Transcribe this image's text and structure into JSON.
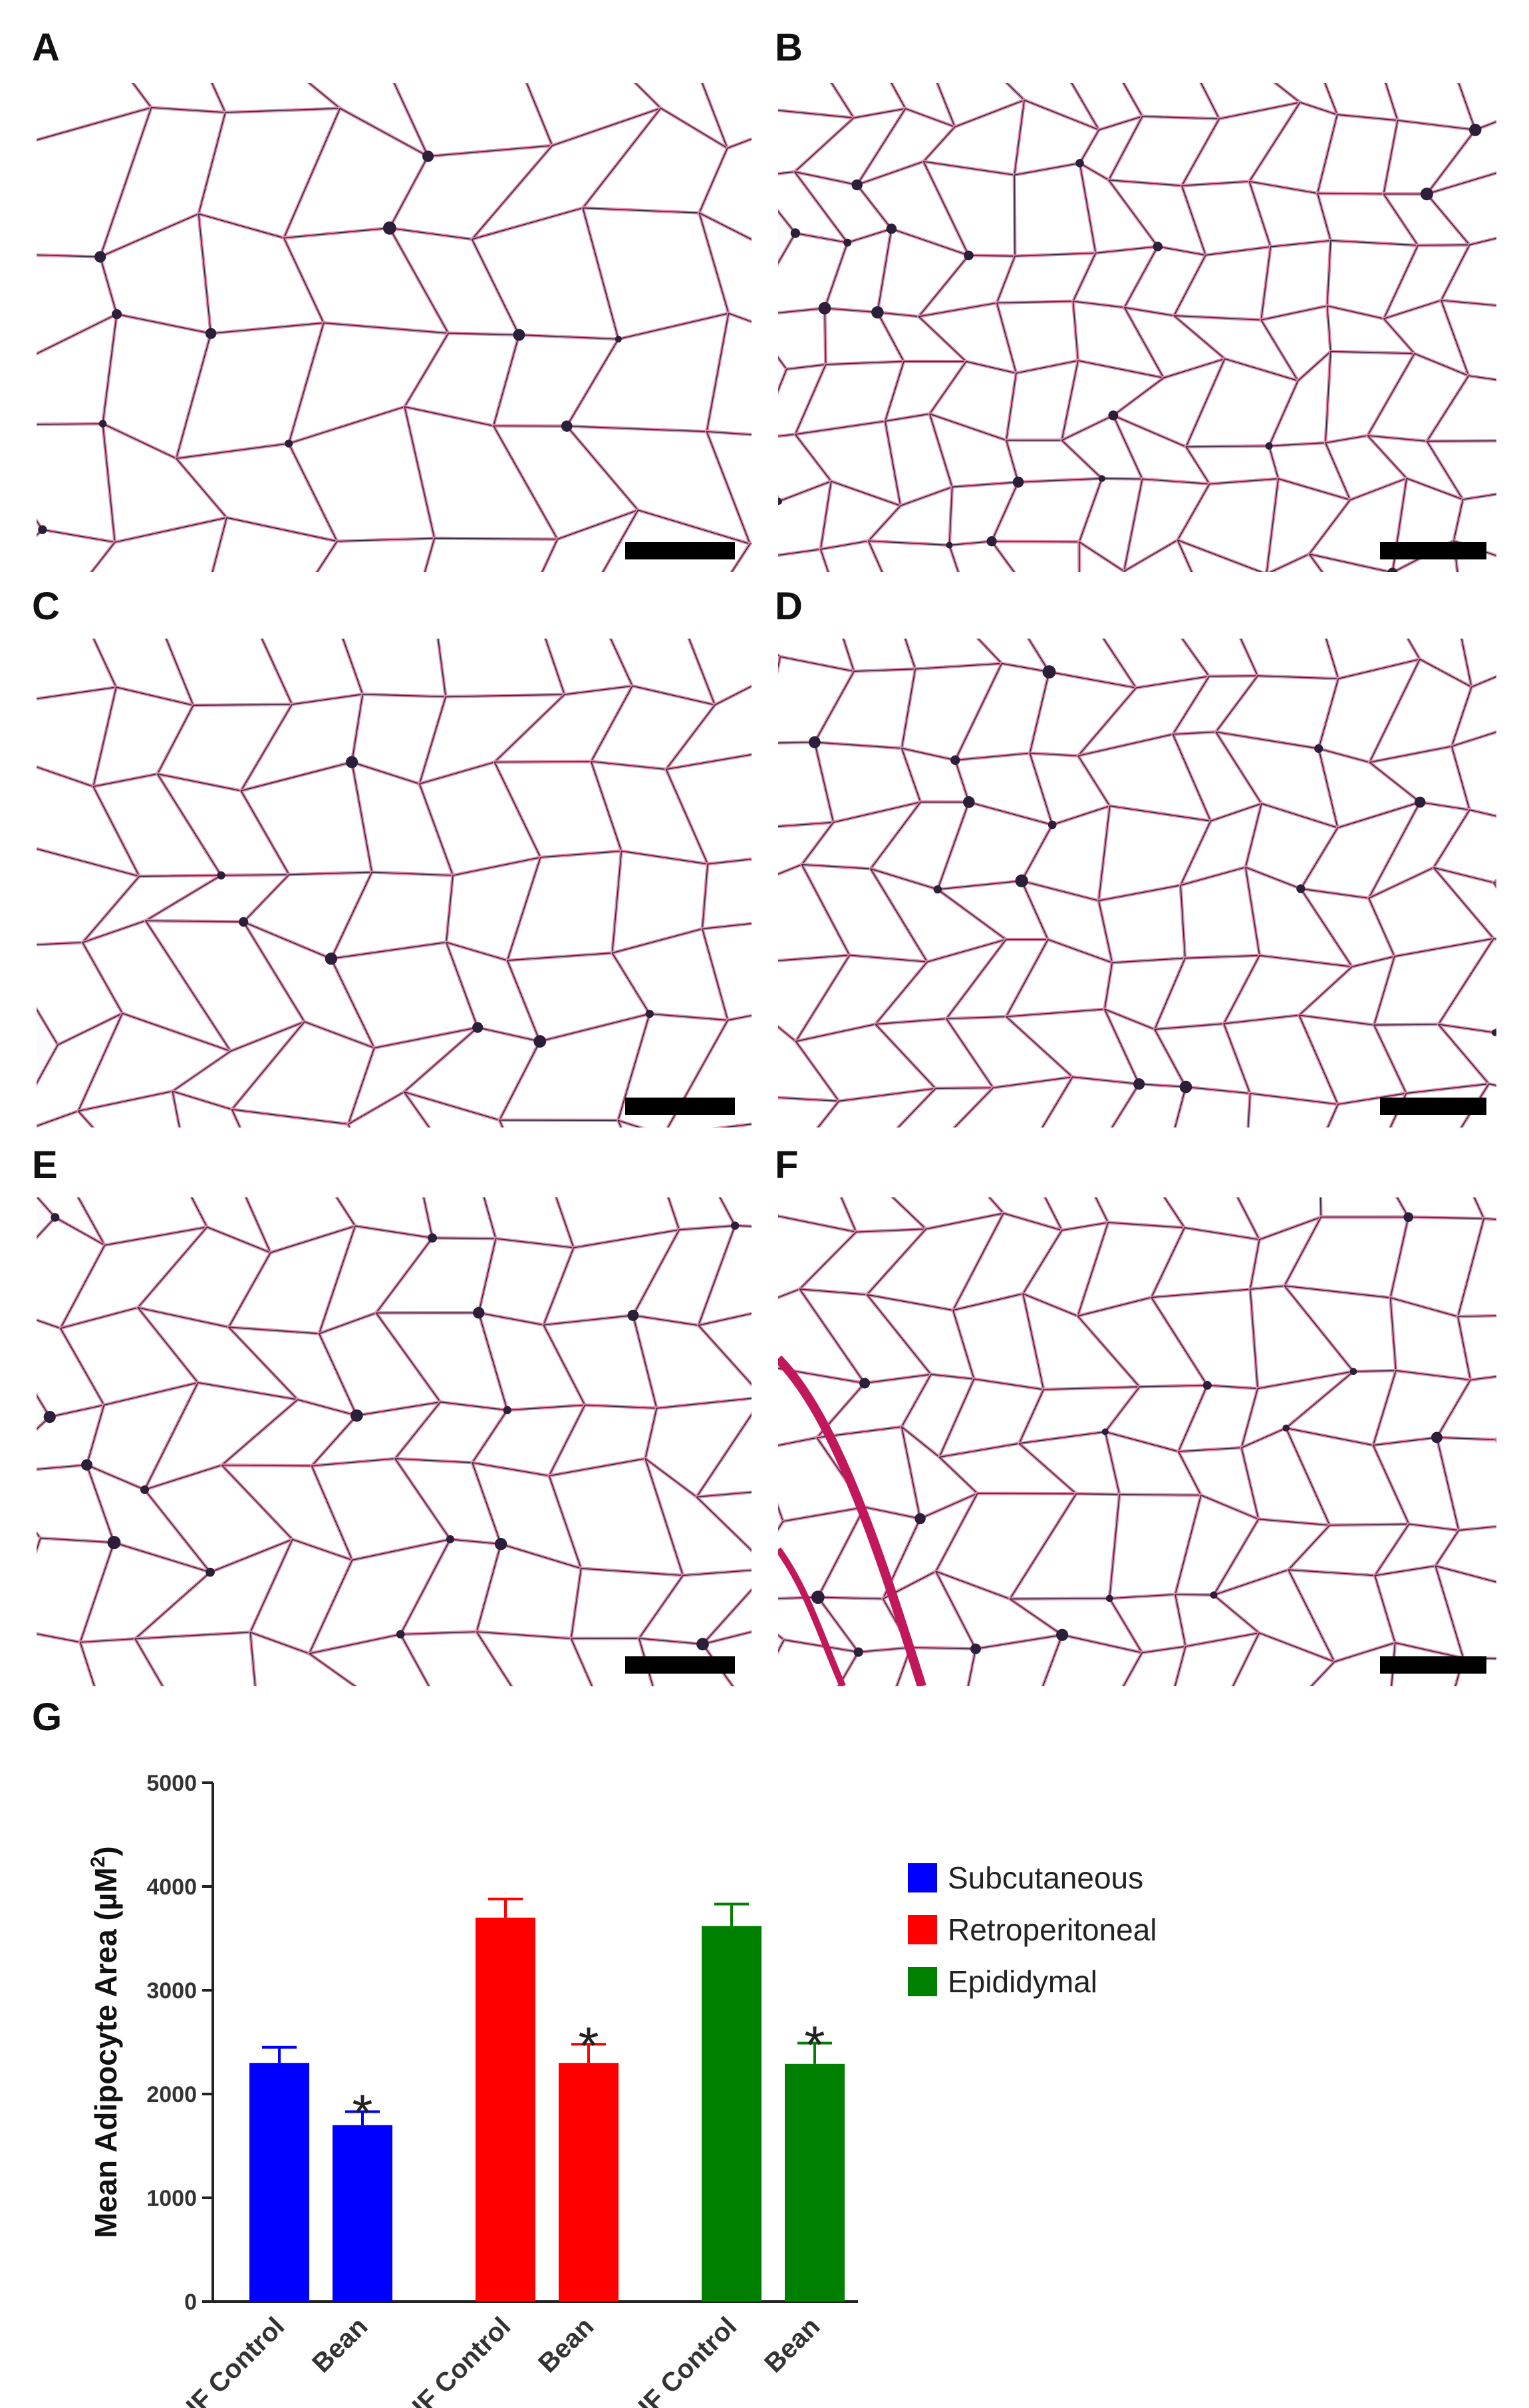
{
  "panels": [
    {
      "label": "A"
    },
    {
      "label": "B"
    },
    {
      "label": "C"
    },
    {
      "label": "D"
    },
    {
      "label": "E"
    },
    {
      "label": "F"
    }
  ],
  "colors": {
    "cell_border": "#3a2f4a",
    "tissue_pink": "#e48aa8",
    "dark_stain": "#c2185b"
  },
  "chart_data": {
    "type": "bar",
    "panel_label": "G",
    "title": "",
    "ylabel": "Mean Adipocyte Area (µM",
    "ylabel_sup": "2",
    "ylabel_close": ")",
    "ylim": [
      0,
      5000
    ],
    "yticks": [
      "0",
      "1000",
      "2000",
      "3000",
      "4000",
      "5000"
    ],
    "categories": [
      "HF Control",
      "Bean"
    ],
    "series": [
      {
        "name": "Subcutaneous",
        "color": "#0000ff",
        "values": [
          2300,
          1700
        ],
        "errors": [
          150,
          130
        ],
        "significant": [
          false,
          true
        ]
      },
      {
        "name": "Retroperitoneal",
        "color": "#ff0000",
        "values": [
          3700,
          2300
        ],
        "errors": [
          180,
          180
        ],
        "significant": [
          false,
          true
        ]
      },
      {
        "name": "Epididymal",
        "color": "#008000",
        "values": [
          3620,
          2290
        ],
        "errors": [
          210,
          200
        ],
        "significant": [
          false,
          true
        ]
      }
    ],
    "significance_marker": "*",
    "legend_position": "right"
  }
}
